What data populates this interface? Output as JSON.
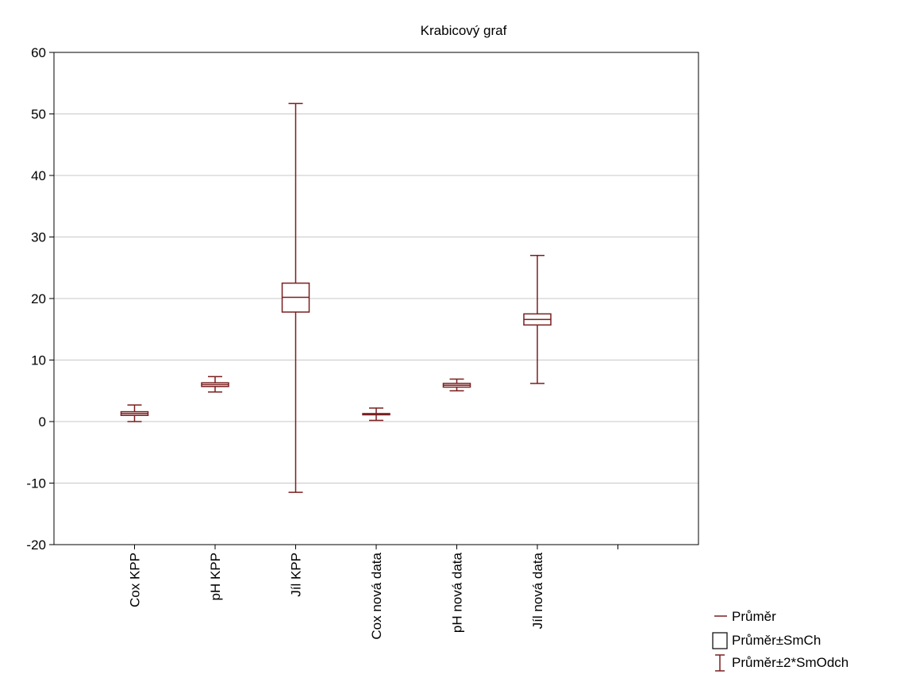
{
  "chart_data": {
    "type": "box",
    "title": "Krabicový graf",
    "categories": [
      "Cox KPP",
      "pH KPP",
      "Jíl KPP",
      "Cox nová data",
      "pH nová data",
      "Jíl nová data"
    ],
    "yticks": [
      60,
      50,
      40,
      30,
      20,
      10,
      0,
      -10,
      -20
    ],
    "ylim": [
      -20,
      60
    ],
    "grid": true,
    "series": [
      {
        "mean": 1.3,
        "box_low": 1.0,
        "box_high": 1.6,
        "whisker_low": 0.0,
        "whisker_high": 2.7
      },
      {
        "mean": 6.0,
        "box_low": 5.7,
        "box_high": 6.3,
        "whisker_low": 4.8,
        "whisker_high": 7.3
      },
      {
        "mean": 20.2,
        "box_low": 17.8,
        "box_high": 22.5,
        "whisker_low": -11.5,
        "whisker_high": 51.7
      },
      {
        "mean": 1.2,
        "box_low": 1.1,
        "box_high": 1.3,
        "whisker_low": 0.2,
        "whisker_high": 2.2
      },
      {
        "mean": 5.9,
        "box_low": 5.6,
        "box_high": 6.2,
        "whisker_low": 5.0,
        "whisker_high": 6.9
      },
      {
        "mean": 16.6,
        "box_low": 15.7,
        "box_high": 17.5,
        "whisker_low": 6.2,
        "whisker_high": 27.0
      }
    ],
    "legend": {
      "position": "bottom-right",
      "items": [
        "Průměr",
        "Průměr±SmCh",
        "Průměr±2*SmOdch"
      ]
    },
    "colors": {
      "series": "#7a1f1f",
      "grid": "#c8c8c8",
      "axis": "#000000"
    }
  }
}
